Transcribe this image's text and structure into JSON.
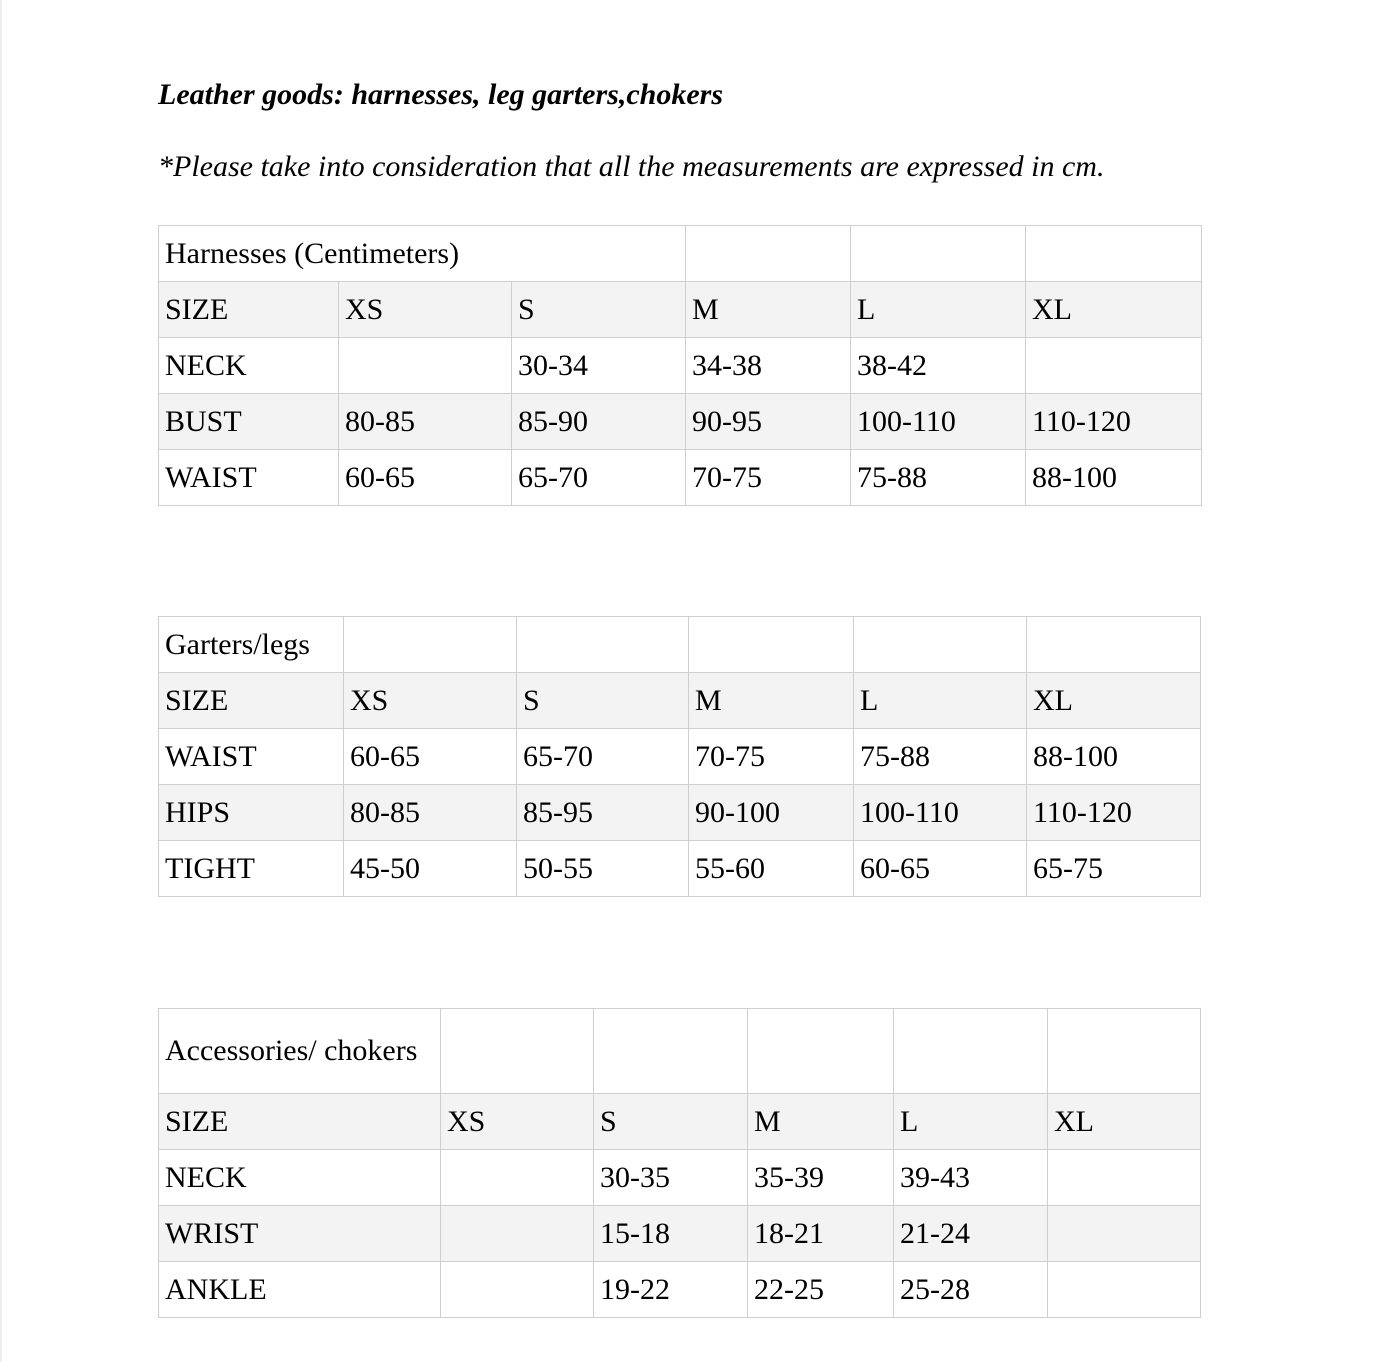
{
  "title": "Leather goods: harnesses, leg garters,chokers",
  "note": "*Please take into consideration that all the measurements are expressed in cm.",
  "tables": [
    {
      "caption": "Harnesses (Centimeters)",
      "header": [
        "SIZE",
        "XS",
        "S",
        "M",
        "L",
        "XL"
      ],
      "rows": [
        [
          "NECK",
          "",
          "30-34",
          "34-38",
          "38-42",
          ""
        ],
        [
          "BUST",
          "80-85",
          "85-90",
          "90-95",
          "100-110",
          "110-120"
        ],
        [
          "WAIST",
          "60-65",
          "65-70",
          "70-75",
          "75-88",
          "88-100"
        ]
      ]
    },
    {
      "caption": "Garters/legs",
      "header": [
        "SIZE",
        "XS",
        "S",
        "M",
        "L",
        "XL"
      ],
      "rows": [
        [
          "WAIST",
          "60-65",
          "65-70",
          "70-75",
          "75-88",
          "88-100"
        ],
        [
          "HIPS",
          "80-85",
          "85-95",
          "90-100",
          "100-110",
          "110-120"
        ],
        [
          "TIGHT",
          "45-50",
          "50-55",
          "55-60",
          "60-65",
          "65-75"
        ]
      ]
    },
    {
      "caption": "Accessories/ chokers",
      "header": [
        "SIZE",
        "XS",
        "S",
        "M",
        "L",
        "XL"
      ],
      "rows": [
        [
          "NECK",
          "",
          "30-35",
          "35-39",
          "39-43",
          ""
        ],
        [
          "WRIST",
          "",
          "15-18",
          "18-21",
          "21-24",
          ""
        ],
        [
          "ANKLE",
          "",
          "19-22",
          "22-25",
          "25-28",
          ""
        ]
      ]
    }
  ]
}
